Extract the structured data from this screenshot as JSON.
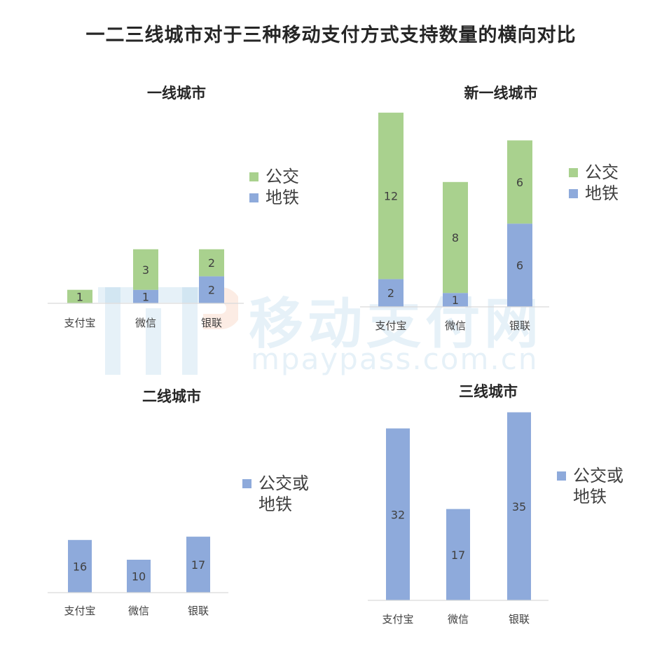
{
  "title": "一二三线城市对于三种移动支付方式支持数量的横向对比",
  "watermark": {
    "brand": "移动支付网",
    "url": "mpaypass.com.cn"
  },
  "colors": {
    "bus": "#a9d18e",
    "metro": "#8eaadb",
    "axis": "#d9d9d9",
    "text": "#404040",
    "title": "#262626"
  },
  "chart_data": [
    {
      "type": "bar",
      "stacked": true,
      "title": "一线城市",
      "categories": [
        "支付宝",
        "微信",
        "银联"
      ],
      "series": [
        {
          "name": "地铁",
          "values": [
            0,
            1,
            2
          ],
          "color": "#8eaadb"
        },
        {
          "name": "公交",
          "values": [
            1,
            3,
            2
          ],
          "color": "#a9d18e"
        }
      ],
      "legend_position": "right"
    },
    {
      "type": "bar",
      "stacked": true,
      "title": "新一线城市",
      "categories": [
        "支付宝",
        "微信",
        "银联"
      ],
      "series": [
        {
          "name": "地铁",
          "values": [
            2,
            1,
            6
          ],
          "color": "#8eaadb"
        },
        {
          "name": "公交",
          "values": [
            12,
            8,
            6
          ],
          "color": "#a9d18e"
        }
      ],
      "legend_position": "right"
    },
    {
      "type": "bar",
      "stacked": false,
      "title": "二线城市",
      "categories": [
        "支付宝",
        "微信",
        "银联"
      ],
      "series": [
        {
          "name": "公交或地铁",
          "values": [
            16,
            10,
            17
          ],
          "color": "#8eaadb"
        }
      ],
      "legend_position": "right"
    },
    {
      "type": "bar",
      "stacked": false,
      "title": "三线城市",
      "categories": [
        "支付宝",
        "微信",
        "银联"
      ],
      "series": [
        {
          "name": "公交或地铁",
          "values": [
            32,
            17,
            35
          ],
          "color": "#8eaadb"
        }
      ],
      "legend_position": "right"
    }
  ]
}
